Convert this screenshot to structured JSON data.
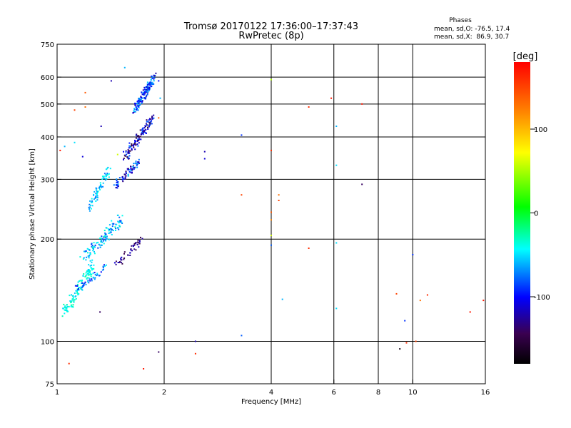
{
  "chart_data": {
    "type": "scatter",
    "title": "Tromsø 20170122 17:36:00–17:37:43",
    "subtitle": "RwPretec (8p)",
    "xlabel": "Frequency [MHz]",
    "ylabel": "Stationary phase Virtual Height [km]",
    "x_scale": "log",
    "y_scale": "log",
    "xlim": [
      1,
      16
    ],
    "ylim": [
      75,
      750
    ],
    "x_ticks": [
      1,
      2,
      4,
      6,
      8,
      10,
      16
    ],
    "y_ticks": [
      75,
      100,
      200,
      300,
      400,
      500,
      600,
      750
    ],
    "x_gridlines": [
      2,
      4,
      6,
      8,
      10
    ],
    "y_gridlines": [
      100,
      200,
      300,
      400,
      500,
      600
    ],
    "stats": {
      "heading": "Phases",
      "line_o": "mean, sd,O: -76.5, 17.4",
      "line_x": "mean, sd,X:  86.9, 30.7"
    },
    "colorbar": {
      "label": "[deg]",
      "range": [
        -180,
        180
      ],
      "ticks": [
        100,
        0,
        -100
      ],
      "tick_labels": [
        "100",
        "0",
        "-100"
      ]
    },
    "points": [
      {
        "x": 1.55,
        "y": 640,
        "phase": -60
      },
      {
        "x": 1.42,
        "y": 585,
        "phase": -120
      },
      {
        "x": 1.93,
        "y": 585,
        "phase": -100
      },
      {
        "x": 1.95,
        "y": 520,
        "phase": -60
      },
      {
        "x": 1.2,
        "y": 540,
        "phase": 140
      },
      {
        "x": 1.12,
        "y": 480,
        "phase": 150
      },
      {
        "x": 1.2,
        "y": 490,
        "phase": 130
      },
      {
        "x": 1.93,
        "y": 455,
        "phase": 130
      },
      {
        "x": 1.33,
        "y": 430,
        "phase": -120
      },
      {
        "x": 1.05,
        "y": 375,
        "phase": -60
      },
      {
        "x": 1.12,
        "y": 385,
        "phase": -50
      },
      {
        "x": 1.18,
        "y": 350,
        "phase": -110
      },
      {
        "x": 1.48,
        "y": 355,
        "phase": 60
      },
      {
        "x": 2.6,
        "y": 362,
        "phase": -120
      },
      {
        "x": 2.6,
        "y": 345,
        "phase": -110
      },
      {
        "x": 3.3,
        "y": 405,
        "phase": -90
      },
      {
        "x": 4.0,
        "y": 590,
        "phase": 50
      },
      {
        "x": 4.0,
        "y": 365,
        "phase": 160
      },
      {
        "x": 5.9,
        "y": 520,
        "phase": 170
      },
      {
        "x": 5.1,
        "y": 490,
        "phase": 160
      },
      {
        "x": 7.2,
        "y": 500,
        "phase": 170
      },
      {
        "x": 6.1,
        "y": 430,
        "phase": -60
      },
      {
        "x": 6.1,
        "y": 330,
        "phase": -50
      },
      {
        "x": 7.2,
        "y": 290,
        "phase": -140
      },
      {
        "x": 3.3,
        "y": 270,
        "phase": 150
      },
      {
        "x": 4.2,
        "y": 270,
        "phase": 130
      },
      {
        "x": 4.2,
        "y": 260,
        "phase": 150
      },
      {
        "x": 4.0,
        "y": 240,
        "phase": 140
      },
      {
        "x": 4.0,
        "y": 228,
        "phase": 120
      },
      {
        "x": 4.0,
        "y": 205,
        "phase": 60
      },
      {
        "x": 4.0,
        "y": 192,
        "phase": -80
      },
      {
        "x": 6.1,
        "y": 195,
        "phase": -50
      },
      {
        "x": 5.1,
        "y": 188,
        "phase": 160
      },
      {
        "x": 10.0,
        "y": 180,
        "phase": -90
      },
      {
        "x": 9.0,
        "y": 138,
        "phase": 150
      },
      {
        "x": 10.5,
        "y": 132,
        "phase": 130
      },
      {
        "x": 11.0,
        "y": 137,
        "phase": 160
      },
      {
        "x": 4.3,
        "y": 133,
        "phase": -60
      },
      {
        "x": 6.1,
        "y": 125,
        "phase": -50
      },
      {
        "x": 9.5,
        "y": 115,
        "phase": -90
      },
      {
        "x": 14.5,
        "y": 122,
        "phase": 170
      },
      {
        "x": 15.8,
        "y": 132,
        "phase": 170
      },
      {
        "x": 3.3,
        "y": 104,
        "phase": -80
      },
      {
        "x": 2.45,
        "y": 100,
        "phase": -120
      },
      {
        "x": 2.45,
        "y": 92,
        "phase": 160
      },
      {
        "x": 1.93,
        "y": 93,
        "phase": -140
      },
      {
        "x": 1.75,
        "y": 83,
        "phase": 170
      },
      {
        "x": 1.08,
        "y": 86,
        "phase": 160
      },
      {
        "x": 9.2,
        "y": 95,
        "phase": -170
      },
      {
        "x": 9.6,
        "y": 99,
        "phase": 160
      },
      {
        "x": 10.2,
        "y": 100,
        "phase": 150
      },
      {
        "x": 1.32,
        "y": 122,
        "phase": -140
      },
      {
        "x": 1.02,
        "y": 365,
        "phase": 170
      }
    ],
    "clusters": [
      {
        "f0": 1.62,
        "f1": 1.9,
        "h0": 460,
        "h1": 620,
        "phase": -90,
        "spread": 35,
        "count": 150
      },
      {
        "f0": 1.53,
        "f1": 1.88,
        "h0": 340,
        "h1": 470,
        "phase": -115,
        "spread": 45,
        "count": 120
      },
      {
        "f0": 1.42,
        "f1": 1.72,
        "h0": 280,
        "h1": 345,
        "phase": -95,
        "spread": 40,
        "count": 70
      },
      {
        "f0": 1.2,
        "f1": 1.42,
        "h0": 235,
        "h1": 330,
        "phase": -55,
        "spread": 20,
        "count": 70
      },
      {
        "f0": 1.15,
        "f1": 1.55,
        "h0": 170,
        "h1": 240,
        "phase": -60,
        "spread": 30,
        "count": 120
      },
      {
        "f0": 1.45,
        "f1": 1.75,
        "h0": 165,
        "h1": 205,
        "phase": -130,
        "spread": 20,
        "count": 45
      },
      {
        "f0": 1.02,
        "f1": 1.28,
        "h0": 115,
        "h1": 175,
        "phase": -40,
        "spread": 15,
        "count": 120
      },
      {
        "f0": 1.12,
        "f1": 1.4,
        "h0": 140,
        "h1": 170,
        "phase": -75,
        "spread": 30,
        "count": 40
      }
    ]
  }
}
